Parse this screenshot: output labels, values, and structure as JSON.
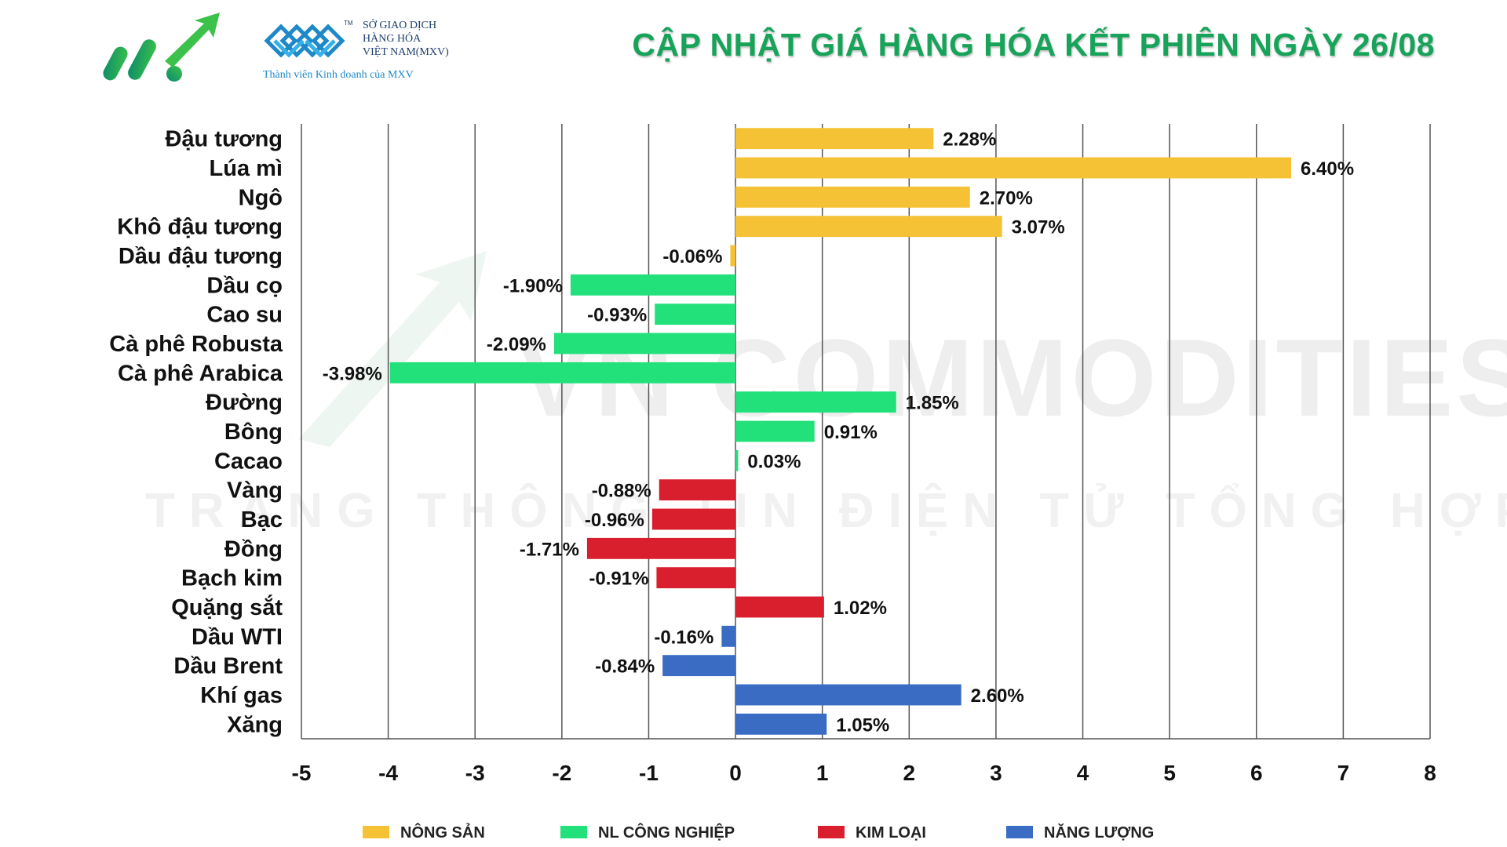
{
  "header": {
    "title": "CẬP NHẬT GIÁ HÀNG HÓA KẾT PHIÊN NGÀY 26/08",
    "exchange_name_lines": [
      "SỞ GIAO DỊCH",
      "HÀNG HÓA",
      "VIỆT NAM(MXV)"
    ],
    "member_text": "Thành viên Kinh doanh của MXV",
    "brand_color": "#18a35a"
  },
  "watermark": {
    "line1": "VN COMMODITIES",
    "line2": "TRANG THÔNG TIN ĐIỆN TỬ TỔNG HỢP"
  },
  "chart_data": {
    "type": "bar",
    "orientation": "horizontal",
    "title": "CẬP NHẬT GIÁ HÀNG HÓA KẾT PHIÊN NGÀY 26/08",
    "xlim": [
      -5,
      8
    ],
    "xticks": [
      -5,
      -4,
      -3,
      -2,
      -1,
      0,
      1,
      2,
      3,
      4,
      5,
      6,
      7,
      8
    ],
    "grid": true,
    "legend_position": "bottom",
    "groups": [
      {
        "name": "NÔNG SẢN",
        "color": "#f5c235"
      },
      {
        "name": "NL CÔNG NGHIỆP",
        "color": "#22e07a"
      },
      {
        "name": "KIM LOẠI",
        "color": "#d91f2e"
      },
      {
        "name": "NĂNG LƯỢNG",
        "color": "#3a6cc4"
      }
    ],
    "items": [
      {
        "category": "Đậu tương",
        "value": 2.28,
        "label": "2.28%",
        "group": 0
      },
      {
        "category": "Lúa mì",
        "value": 6.4,
        "label": "6.40%",
        "group": 0
      },
      {
        "category": "Ngô",
        "value": 2.7,
        "label": "2.70%",
        "group": 0
      },
      {
        "category": "Khô đậu tương",
        "value": 3.07,
        "label": "3.07%",
        "group": 0
      },
      {
        "category": "Dầu đậu tương",
        "value": -0.06,
        "label": "-0.06%",
        "group": 0
      },
      {
        "category": "Dầu cọ",
        "value": -1.9,
        "label": "-1.90%",
        "group": 1
      },
      {
        "category": "Cao su",
        "value": -0.93,
        "label": "-0.93%",
        "group": 1
      },
      {
        "category": "Cà phê Robusta",
        "value": -2.09,
        "label": "-2.09%",
        "group": 1
      },
      {
        "category": "Cà phê Arabica",
        "value": -3.98,
        "label": "-3.98%",
        "group": 1
      },
      {
        "category": "Đường",
        "value": 1.85,
        "label": "1.85%",
        "group": 1
      },
      {
        "category": "Bông",
        "value": 0.91,
        "label": "0.91%",
        "group": 1
      },
      {
        "category": "Cacao",
        "value": 0.03,
        "label": "0.03%",
        "group": 1
      },
      {
        "category": "Vàng",
        "value": -0.88,
        "label": "-0.88%",
        "group": 2
      },
      {
        "category": "Bạc",
        "value": -0.96,
        "label": "-0.96%",
        "group": 2
      },
      {
        "category": "Đồng",
        "value": -1.71,
        "label": "-1.71%",
        "group": 2
      },
      {
        "category": "Bạch kim",
        "value": -0.91,
        "label": "-0.91%",
        "group": 2
      },
      {
        "category": "Quặng sắt",
        "value": 1.02,
        "label": "1.02%",
        "group": 2
      },
      {
        "category": "Dầu WTI",
        "value": -0.16,
        "label": "-0.16%",
        "group": 3
      },
      {
        "category": "Dầu Brent",
        "value": -0.84,
        "label": "-0.84%",
        "group": 3
      },
      {
        "category": "Khí gas",
        "value": 2.6,
        "label": "2.60%",
        "group": 3
      },
      {
        "category": "Xăng",
        "value": 1.05,
        "label": "1.05%",
        "group": 3
      }
    ]
  }
}
